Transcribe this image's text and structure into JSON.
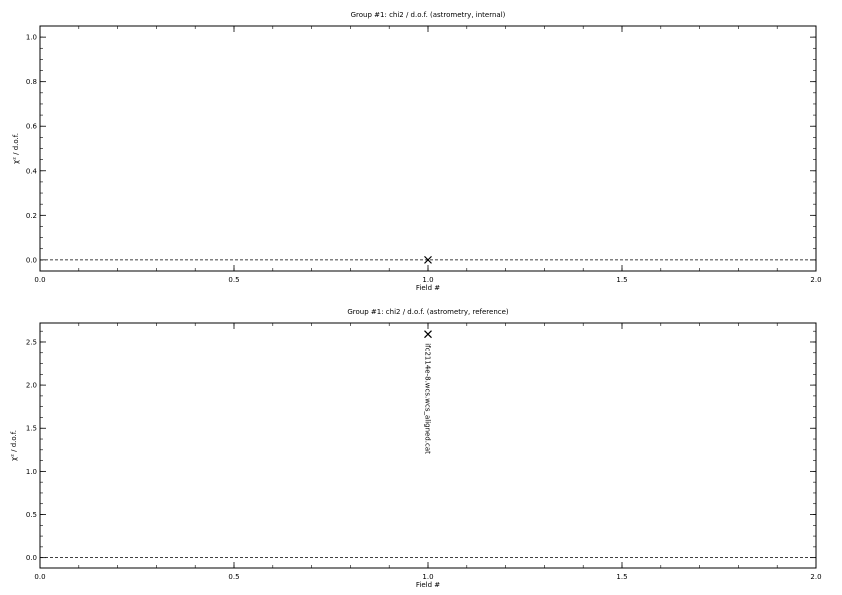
{
  "chart_data": [
    {
      "type": "scatter",
      "title": "Group #1: chi2 / d.o.f. (astrometry, internal)",
      "xlabel": "Field #",
      "ylabel": "χ² / d.o.f.",
      "xlim": [
        0.0,
        2.0
      ],
      "ylim": [
        -0.05,
        1.05
      ],
      "x_ticks": [
        "0.0",
        "0.5",
        "1.0",
        "1.5",
        "2.0"
      ],
      "y_ticks": [
        "0.0",
        "0.2",
        "0.4",
        "0.6",
        "0.8",
        "1.0"
      ],
      "reference_line_y": 0.0,
      "points": [
        {
          "x": 1.0,
          "y": 0.0,
          "label": ""
        }
      ],
      "grid": false,
      "marker": "x"
    },
    {
      "type": "scatter",
      "title": "Group #1: chi2 / d.o.f. (astrometry, reference)",
      "xlabel": "Field #",
      "ylabel": "χ² / d.o.f.",
      "xlim": [
        0.0,
        2.0
      ],
      "ylim": [
        -0.12,
        2.72
      ],
      "x_ticks": [
        "0.0",
        "0.5",
        "1.0",
        "1.5",
        "2.0"
      ],
      "y_ticks": [
        "0.0",
        "0.5",
        "1.0",
        "1.5",
        "2.0",
        "2.5"
      ],
      "reference_line_y": 0.0,
      "points": [
        {
          "x": 1.0,
          "y": 2.59,
          "label": "ifc2114e-8.wcs.wcs_aligned.cat"
        }
      ],
      "grid": false,
      "marker": "x"
    }
  ]
}
